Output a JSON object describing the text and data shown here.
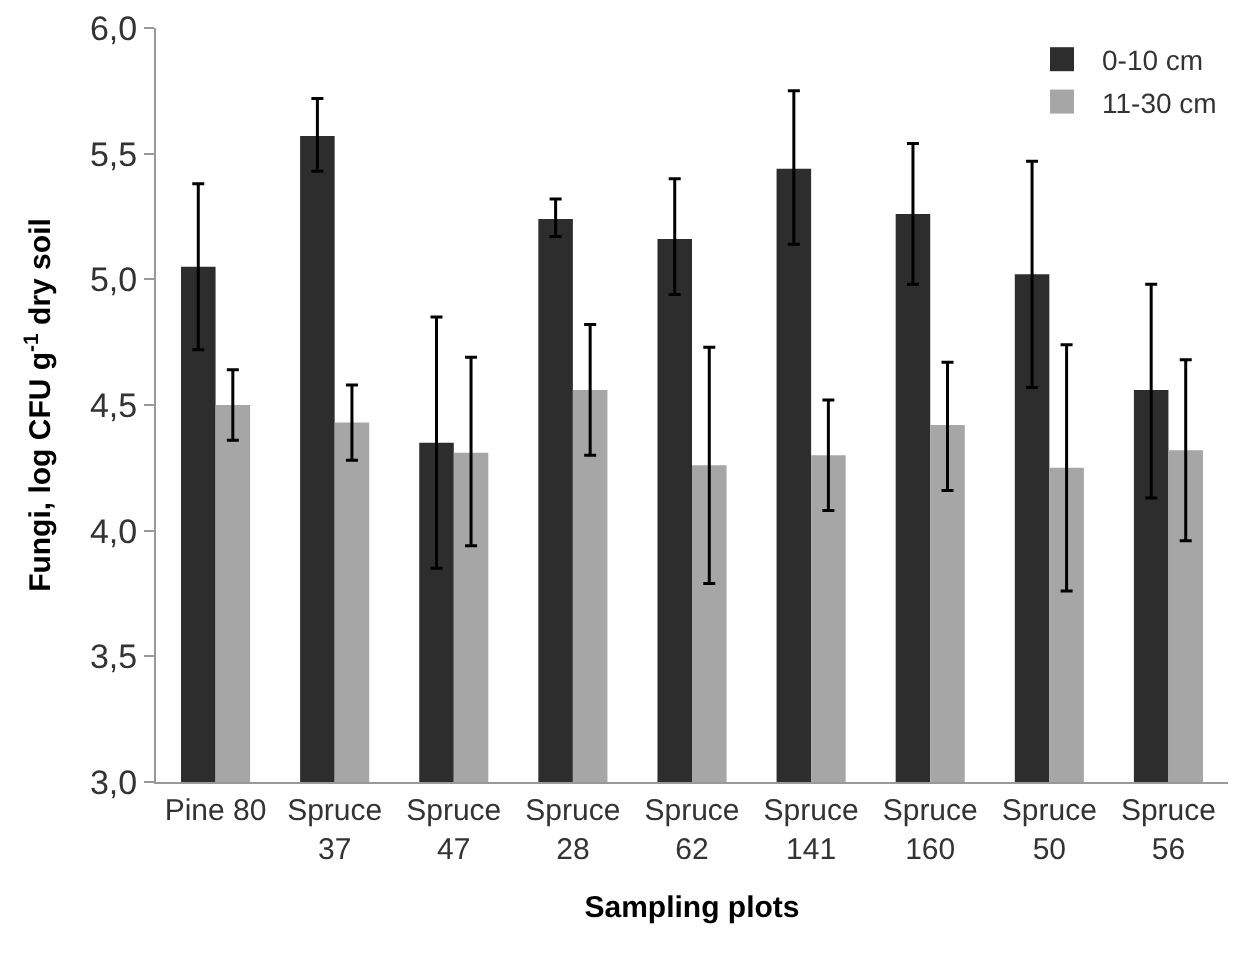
{
  "chart_data": {
    "type": "bar",
    "xlabel": "Sampling plots",
    "ylabel": "Fungi, log CFU g$^{-1}$ dry soil",
    "categories": [
      "Pine 80",
      "Spruce\n37",
      "Spruce\n47",
      "Spruce\n28",
      "Spruce\n62",
      "Spruce\n141",
      "Spruce\n160",
      "Spruce\n50",
      "Spruce\n56"
    ],
    "series": [
      {
        "name": "0-10 cm",
        "color": "#2d2d2d",
        "values": [
          5.05,
          5.57,
          4.35,
          5.24,
          5.16,
          5.44,
          5.26,
          5.02,
          4.56
        ],
        "errors": [
          [
            4.72,
            5.38
          ],
          [
            5.43,
            5.72
          ],
          [
            3.85,
            4.85
          ],
          [
            5.17,
            5.32
          ],
          [
            4.94,
            5.4
          ],
          [
            5.14,
            5.75
          ],
          [
            4.98,
            5.54
          ],
          [
            4.57,
            5.47
          ],
          [
            4.13,
            4.98
          ]
        ]
      },
      {
        "name": "11-30 cm",
        "color": "#a6a6a6",
        "values": [
          4.5,
          4.43,
          4.31,
          4.56,
          4.26,
          4.3,
          4.42,
          4.25,
          4.32
        ],
        "errors": [
          [
            4.36,
            4.64
          ],
          [
            4.28,
            4.58
          ],
          [
            3.94,
            4.69
          ],
          [
            4.3,
            4.82
          ],
          [
            3.79,
            4.73
          ],
          [
            4.08,
            4.52
          ],
          [
            4.16,
            4.67
          ],
          [
            3.76,
            4.74
          ],
          [
            3.96,
            4.68
          ]
        ]
      }
    ],
    "ylim": [
      3.0,
      6.0
    ],
    "yticks": [
      {
        "value": 3.0,
        "label": "3,0"
      },
      {
        "value": 3.5,
        "label": "3,5"
      },
      {
        "value": 4.0,
        "label": "4,0"
      },
      {
        "value": 4.5,
        "label": "4,5"
      },
      {
        "value": 5.0,
        "label": "5,0"
      },
      {
        "value": 5.5,
        "label": "5,5"
      },
      {
        "value": 6.0,
        "label": "6,0"
      }
    ],
    "legend": "top right"
  }
}
